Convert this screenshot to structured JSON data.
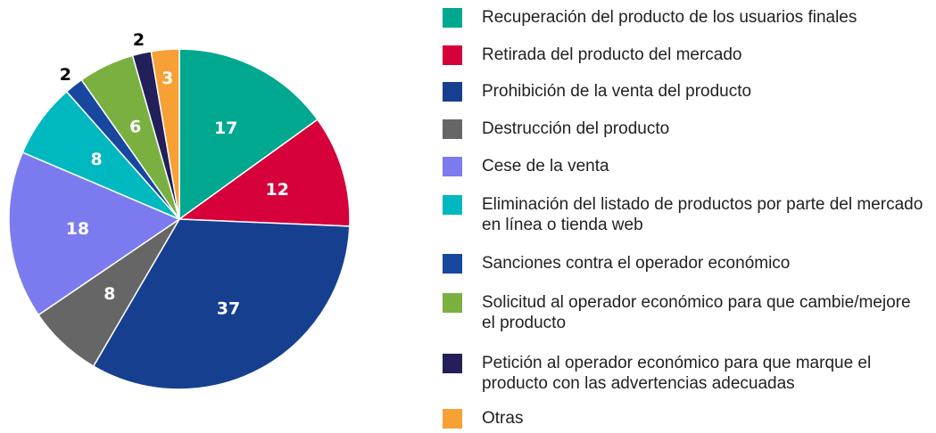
{
  "chart_data": {
    "type": "pie",
    "categories": [
      "Recuperación del producto de los usuarios finales",
      "Retirada del producto del mercado",
      "Prohibición de la venta del producto",
      "Destrucción del producto",
      "Cese de la venta",
      "Eliminación del listado de productos por parte del mercado en línea o tienda web",
      "Sanciones contra el operador económico",
      "Solicitud al operador económico para que cambie/mejore el producto",
      "Petición al operador económico para que marque el producto con las advertencias adecuadas",
      "Otras"
    ],
    "values": [
      17,
      12,
      37,
      8,
      18,
      8,
      2,
      6,
      2,
      3
    ],
    "colors": [
      "#00a88f",
      "#d6003a",
      "#16408f",
      "#666666",
      "#7b7bef",
      "#00b8c0",
      "#17479e",
      "#7ab03f",
      "#221f5a",
      "#f7a035"
    ]
  }
}
